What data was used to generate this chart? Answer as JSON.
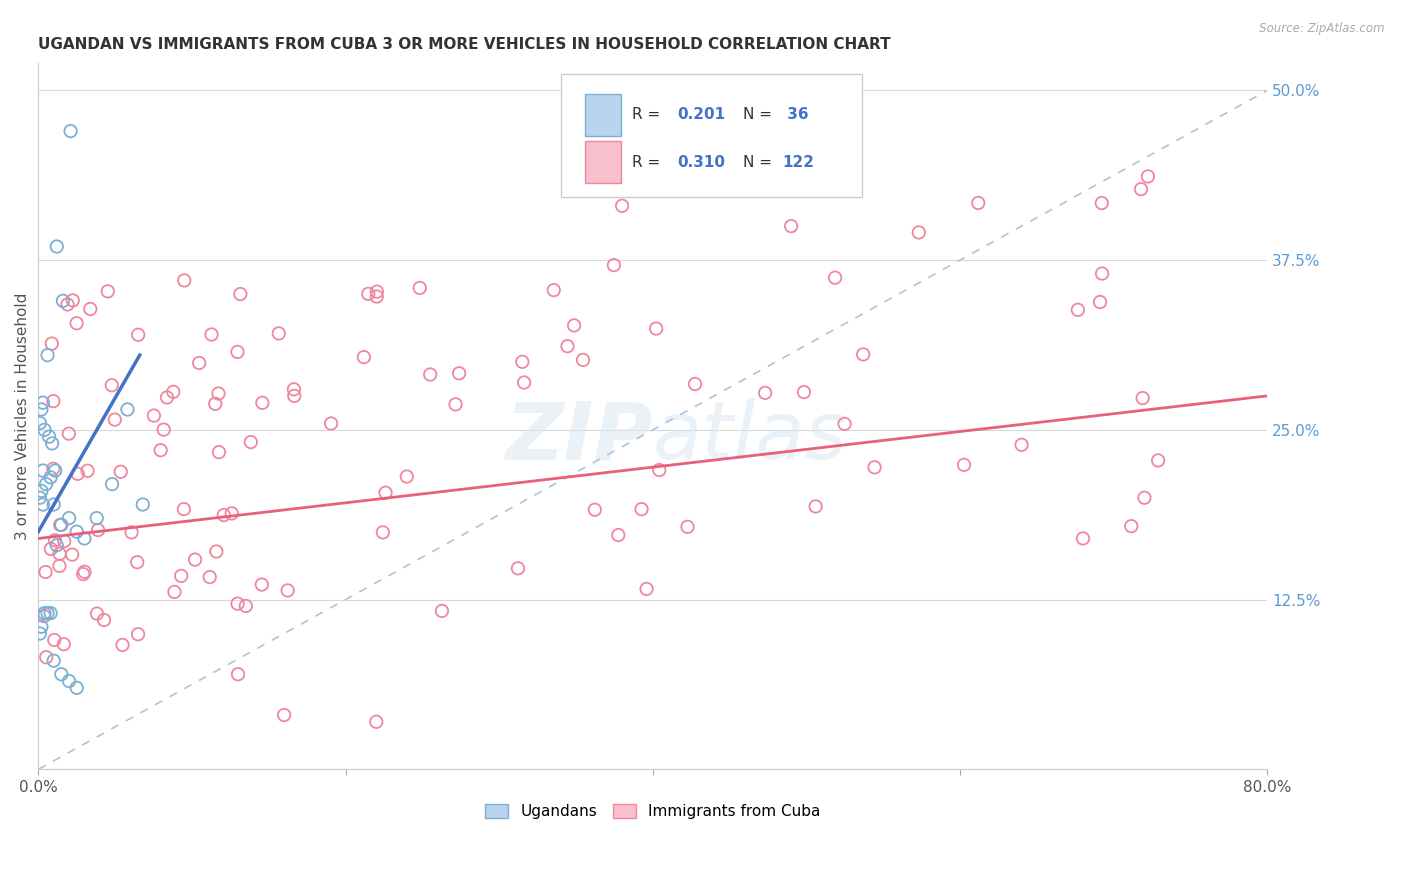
{
  "title": "UGANDAN VS IMMIGRANTS FROM CUBA 3 OR MORE VEHICLES IN HOUSEHOLD CORRELATION CHART",
  "source": "Source: ZipAtlas.com",
  "ylabel": "3 or more Vehicles in Household",
  "xlim": [
    0.0,
    0.8
  ],
  "ylim": [
    0.0,
    0.52
  ],
  "color_ugandan_fill": "none",
  "color_ugandan_edge": "#7bafd4",
  "color_cuba_fill": "none",
  "color_cuba_edge": "#f086a0",
  "color_ugandan_line": "#4472c4",
  "color_cuba_line": "#e8607a",
  "color_dashed_line": "#aac4e0",
  "watermark": "ZIPatlas",
  "legend_R1": "0.201",
  "legend_N1": "36",
  "legend_R2": "0.310",
  "legend_N2": "122",
  "ytick_vals": [
    0.0,
    0.125,
    0.25,
    0.375,
    0.5
  ],
  "ytick_labels": [
    "",
    "12.5%",
    "25.0%",
    "37.5%",
    "50.0%"
  ],
  "xtick_labels": [
    "0.0%",
    "",
    "",
    "",
    "80.0%"
  ]
}
